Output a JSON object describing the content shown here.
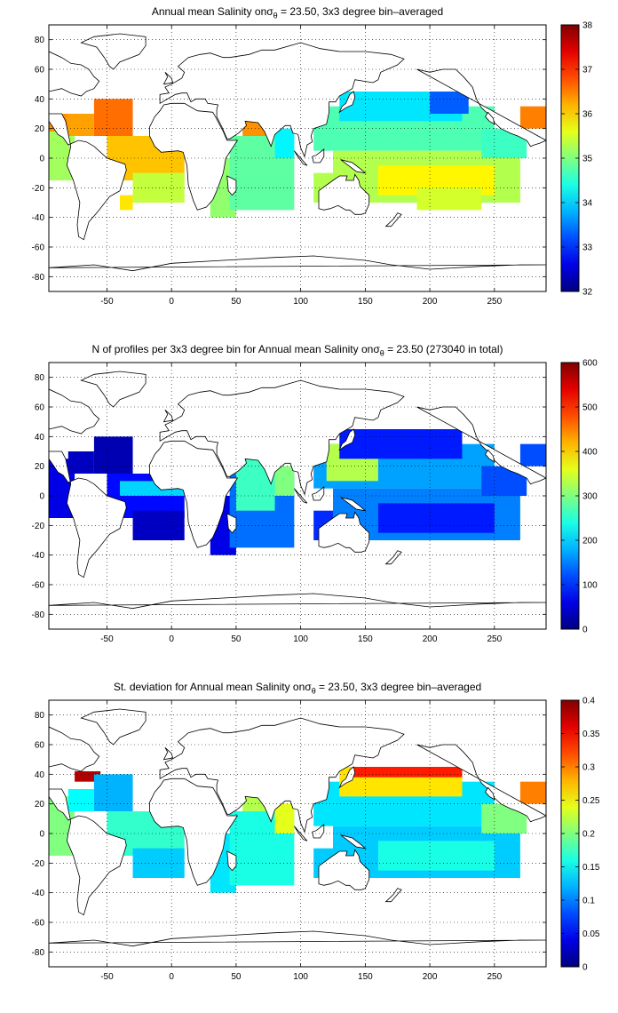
{
  "chart_data": [
    {
      "type": "heatmap",
      "title_prefix": "Annual mean Salinity on",
      "title_symbol": "σ",
      "title_subscript": "θ",
      "title_suffix": " = 23.50, 3x3 degree bin–averaged",
      "x_ticks": [
        "-50",
        "0",
        "50",
        "100",
        "150",
        "200",
        "250"
      ],
      "y_ticks": [
        "80",
        "60",
        "40",
        "20",
        "0",
        "-20",
        "-40",
        "-60",
        "-80"
      ],
      "xlim": [
        -95,
        290
      ],
      "ylim": [
        -90,
        90
      ],
      "grid": true,
      "colormap": "jet",
      "clim": [
        32,
        38
      ],
      "colorbar_ticks": [
        "32",
        "33",
        "34",
        "35",
        "36",
        "37",
        "38"
      ],
      "regions": [
        {
          "lon": [
            -95,
            -75
          ],
          "lat": [
            -15,
            25
          ],
          "value": 35.2
        },
        {
          "lon": [
            -80,
            -60
          ],
          "lat": [
            15,
            30
          ],
          "value": 36.3
        },
        {
          "lon": [
            -60,
            -30
          ],
          "lat": [
            15,
            40
          ],
          "value": 36.6
        },
        {
          "lon": [
            -50,
            10
          ],
          "lat": [
            -15,
            15
          ],
          "value": 36.1
        },
        {
          "lon": [
            -30,
            10
          ],
          "lat": [
            -30,
            -10
          ],
          "value": 35.4
        },
        {
          "lon": [
            -40,
            -30
          ],
          "lat": [
            -35,
            -25
          ],
          "value": 35.9
        },
        {
          "lon": [
            30,
            50
          ],
          "lat": [
            -40,
            0
          ],
          "value": 35.1
        },
        {
          "lon": [
            45,
            95
          ],
          "lat": [
            -35,
            15
          ],
          "value": 34.8
        },
        {
          "lon": [
            55,
            75
          ],
          "lat": [
            15,
            30
          ],
          "value": 36.4
        },
        {
          "lon": [
            80,
            95
          ],
          "lat": [
            0,
            20
          ],
          "value": 34.2
        },
        {
          "lon": [
            110,
            140
          ],
          "lat": [
            -30,
            -10
          ],
          "value": 35.3
        },
        {
          "lon": [
            110,
            250
          ],
          "lat": [
            5,
            35
          ],
          "value": 34.7
        },
        {
          "lon": [
            130,
            225
          ],
          "lat": [
            25,
            45
          ],
          "value": 34.1
        },
        {
          "lon": [
            200,
            230
          ],
          "lat": [
            30,
            45
          ],
          "value": 33.3
        },
        {
          "lon": [
            125,
            270
          ],
          "lat": [
            -30,
            5
          ],
          "value": 35.3
        },
        {
          "lon": [
            160,
            250
          ],
          "lat": [
            -25,
            -5
          ],
          "value": 35.8
        },
        {
          "lon": [
            190,
            240
          ],
          "lat": [
            -35,
            -20
          ],
          "value": 35.5
        },
        {
          "lon": [
            240,
            275
          ],
          "lat": [
            0,
            20
          ],
          "value": 34.6
        },
        {
          "lon": [
            270,
            290
          ],
          "lat": [
            20,
            35
          ],
          "value": 36.5
        },
        {
          "lon": [
            -95,
            -80
          ],
          "lat": [
            18,
            30
          ],
          "value": 36.4
        }
      ]
    },
    {
      "type": "heatmap",
      "title_prefix": "N of profiles per 3x3 degree bin for Annual mean Salinity on",
      "title_symbol": "σ",
      "title_subscript": "θ",
      "title_suffix": " = 23.50 (273040 in total)",
      "x_ticks": [
        "-50",
        "0",
        "50",
        "100",
        "150",
        "200",
        "250"
      ],
      "y_ticks": [
        "80",
        "60",
        "40",
        "20",
        "0",
        "-20",
        "-40",
        "-60",
        "-80"
      ],
      "xlim": [
        -95,
        290
      ],
      "ylim": [
        -90,
        90
      ],
      "grid": true,
      "colormap": "jet",
      "clim": [
        0,
        600
      ],
      "colorbar_ticks": [
        "0",
        "100",
        "200",
        "300",
        "400",
        "500",
        "600"
      ],
      "regions": [
        {
          "lon": [
            -95,
            -75
          ],
          "lat": [
            -15,
            25
          ],
          "value": 60
        },
        {
          "lon": [
            -80,
            -60
          ],
          "lat": [
            15,
            30
          ],
          "value": 40
        },
        {
          "lon": [
            -60,
            -30
          ],
          "lat": [
            15,
            40
          ],
          "value": 30
        },
        {
          "lon": [
            -50,
            10
          ],
          "lat": [
            -15,
            15
          ],
          "value": 80
        },
        {
          "lon": [
            -40,
            10
          ],
          "lat": [
            0,
            10
          ],
          "value": 200
        },
        {
          "lon": [
            -30,
            10
          ],
          "lat": [
            -30,
            -10
          ],
          "value": 40
        },
        {
          "lon": [
            30,
            50
          ],
          "lat": [
            -40,
            0
          ],
          "value": 60
        },
        {
          "lon": [
            45,
            95
          ],
          "lat": [
            -35,
            15
          ],
          "value": 140
        },
        {
          "lon": [
            50,
            80
          ],
          "lat": [
            -10,
            25
          ],
          "value": 260
        },
        {
          "lon": [
            80,
            95
          ],
          "lat": [
            0,
            20
          ],
          "value": 300
        },
        {
          "lon": [
            110,
            140
          ],
          "lat": [
            -30,
            -10
          ],
          "value": 100
        },
        {
          "lon": [
            110,
            250
          ],
          "lat": [
            5,
            35
          ],
          "value": 170
        },
        {
          "lon": [
            120,
            160
          ],
          "lat": [
            10,
            35
          ],
          "value": 330
        },
        {
          "lon": [
            130,
            225
          ],
          "lat": [
            25,
            45
          ],
          "value": 90
        },
        {
          "lon": [
            125,
            270
          ],
          "lat": [
            -30,
            5
          ],
          "value": 150
        },
        {
          "lon": [
            160,
            250
          ],
          "lat": [
            -25,
            -5
          ],
          "value": 90
        },
        {
          "lon": [
            240,
            275
          ],
          "lat": [
            0,
            20
          ],
          "value": 120
        },
        {
          "lon": [
            270,
            290
          ],
          "lat": [
            20,
            35
          ],
          "value": 120
        }
      ]
    },
    {
      "type": "heatmap",
      "title_prefix": "St. deviation for Annual mean Salinity on",
      "title_symbol": "σ",
      "title_subscript": "θ",
      "title_suffix": " = 23.50, 3x3 degree bin–averaged",
      "x_ticks": [
        "-50",
        "0",
        "50",
        "100",
        "150",
        "200",
        "250"
      ],
      "y_ticks": [
        "80",
        "60",
        "40",
        "20",
        "0",
        "-20",
        "-40",
        "-60",
        "-80"
      ],
      "xlim": [
        -95,
        290
      ],
      "ylim": [
        -90,
        90
      ],
      "grid": true,
      "colormap": "jet",
      "clim": [
        0,
        0.4
      ],
      "colorbar_ticks": [
        "0",
        "0.05",
        "0.1",
        "0.15",
        "0.2",
        "0.25",
        "0.3",
        "0.35",
        "0.4"
      ],
      "regions": [
        {
          "lon": [
            -95,
            -75
          ],
          "lat": [
            -15,
            25
          ],
          "value": 0.2
        },
        {
          "lon": [
            -80,
            -60
          ],
          "lat": [
            15,
            30
          ],
          "value": 0.15
        },
        {
          "lon": [
            -75,
            -55
          ],
          "lat": [
            35,
            42
          ],
          "value": 0.38
        },
        {
          "lon": [
            -60,
            -30
          ],
          "lat": [
            15,
            40
          ],
          "value": 0.12
        },
        {
          "lon": [
            -50,
            10
          ],
          "lat": [
            -15,
            15
          ],
          "value": 0.17
        },
        {
          "lon": [
            -30,
            10
          ],
          "lat": [
            -30,
            -10
          ],
          "value": 0.13
        },
        {
          "lon": [
            30,
            50
          ],
          "lat": [
            -40,
            0
          ],
          "value": 0.14
        },
        {
          "lon": [
            45,
            95
          ],
          "lat": [
            -35,
            15
          ],
          "value": 0.16
        },
        {
          "lon": [
            55,
            75
          ],
          "lat": [
            15,
            30
          ],
          "value": 0.22
        },
        {
          "lon": [
            80,
            95
          ],
          "lat": [
            0,
            20
          ],
          "value": 0.24
        },
        {
          "lon": [
            110,
            140
          ],
          "lat": [
            -30,
            -10
          ],
          "value": 0.13
        },
        {
          "lon": [
            110,
            250
          ],
          "lat": [
            5,
            35
          ],
          "value": 0.14
        },
        {
          "lon": [
            130,
            225
          ],
          "lat": [
            25,
            45
          ],
          "value": 0.26
        },
        {
          "lon": [
            140,
            225
          ],
          "lat": [
            38,
            45
          ],
          "value": 0.34
        },
        {
          "lon": [
            125,
            270
          ],
          "lat": [
            -30,
            5
          ],
          "value": 0.13
        },
        {
          "lon": [
            160,
            250
          ],
          "lat": [
            -25,
            -5
          ],
          "value": 0.16
        },
        {
          "lon": [
            240,
            275
          ],
          "lat": [
            0,
            20
          ],
          "value": 0.2
        },
        {
          "lon": [
            270,
            290
          ],
          "lat": [
            20,
            35
          ],
          "value": 0.3
        }
      ]
    }
  ]
}
